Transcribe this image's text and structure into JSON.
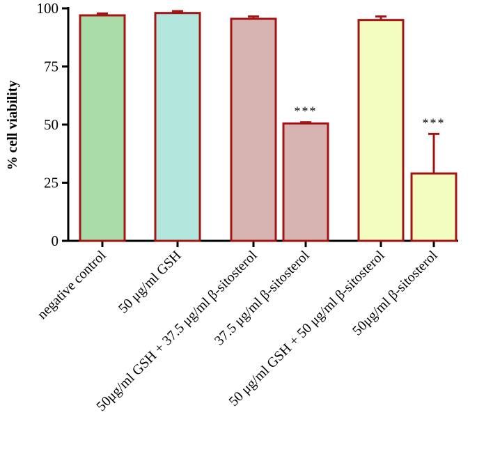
{
  "chart_data": {
    "type": "bar",
    "ylabel": "% cell viability",
    "ylim": [
      0,
      100
    ],
    "yticks": [
      0,
      25,
      50,
      75,
      100
    ],
    "grid": false,
    "legend": "none",
    "categories": [
      "negative control",
      "50 μg/ml GSH",
      "50μg/ml GSH + 37.5 μg/ml β-sitosterol",
      "37.5 μg/ml β-sitosterol",
      "50 μg/ml GSH + 50 μg/ml β-sitosterol",
      "50μg/ml β-sitosterol"
    ],
    "values": [
      97,
      98,
      95.5,
      50.5,
      95,
      29
    ],
    "errors": [
      0.8,
      0.8,
      1.0,
      0.5,
      1.5,
      17
    ],
    "annotations": [
      "",
      "",
      "",
      "***",
      "",
      "***"
    ],
    "colors": {
      "bar_fills": [
        "#a9dca7",
        "#b3e6dc",
        "#d7b4b2",
        "#d7b4b2",
        "#f3fdbf",
        "#f3fdbf"
      ],
      "bar_stroke": "#a31515",
      "axis": "#000000"
    }
  }
}
